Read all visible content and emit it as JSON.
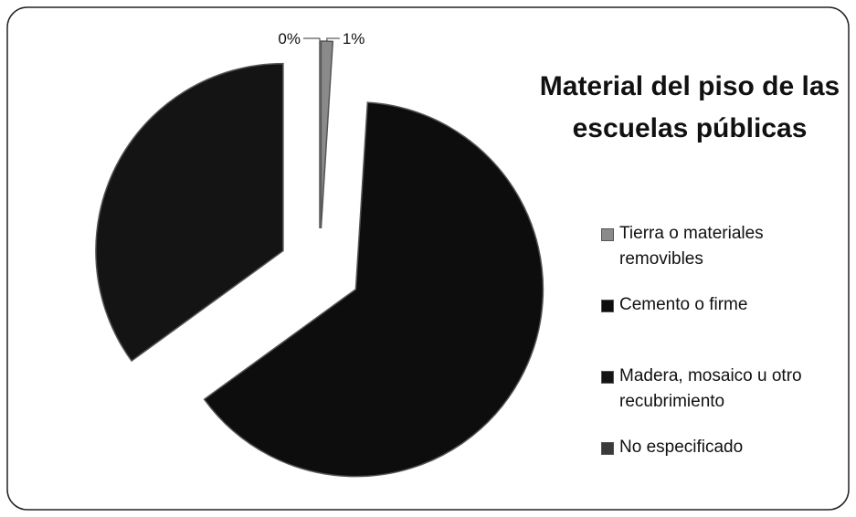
{
  "chart_data": {
    "type": "pie",
    "title": "Material del piso de las escuelas públicas",
    "categories": [
      "Tierra o materiales removibles",
      "Cemento o firme",
      "Madera, mosaico u otro recubrimiento",
      "No especificado"
    ],
    "values": [
      1,
      64,
      35,
      0
    ],
    "value_labels": [
      "1%",
      null,
      null,
      "0%"
    ],
    "colors": [
      "#8a8a8a",
      "#0d0d0d",
      "#141414",
      "#3a3a3a"
    ],
    "legend": "right"
  }
}
